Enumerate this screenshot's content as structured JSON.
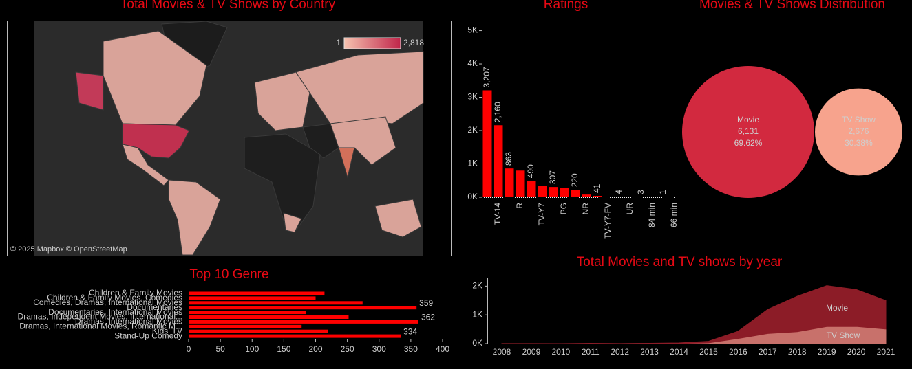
{
  "chart_data": [
    {
      "type": "map",
      "title": "Total Movies & TV Shows by Country",
      "colorbar": {
        "ticks": [
          1,
          {
            "value": 2818,
            "label": "2,818"
          }
        ],
        "colors": [
          "#f6c3b0",
          "#c0254a"
        ]
      },
      "attribution": "© 2025 Mapbox © OpenStreetMap"
    },
    {
      "type": "bar",
      "title": "Ratings",
      "categories": [
        null,
        "TV-14",
        null,
        "R",
        null,
        "TV-Y7",
        null,
        "PG",
        null,
        "NR",
        null,
        "TV-Y7-FV",
        null,
        "UR",
        null,
        "84 min",
        null,
        "66 min"
      ],
      "values": [
        3207,
        2160,
        863,
        799,
        490,
        334,
        307,
        287,
        220,
        80,
        41,
        11,
        4,
        3,
        3,
        1,
        1,
        1
      ],
      "value_labels": [
        "3,207",
        "2,160",
        "863",
        null,
        "490",
        null,
        "307",
        null,
        "220",
        null,
        "41",
        null,
        "4",
        null,
        "3",
        null,
        "1",
        null
      ],
      "color": "#ff0000",
      "ylim": [
        0,
        5300
      ],
      "yticks": [
        {
          "value": 0,
          "label": "0K"
        },
        {
          "value": 1000,
          "label": "1K"
        },
        {
          "value": 2000,
          "label": "2K"
        },
        {
          "value": 3000,
          "label": "3K"
        },
        {
          "value": 4000,
          "label": "4K"
        },
        {
          "value": 5000,
          "label": "5K"
        }
      ]
    },
    {
      "type": "bubble",
      "title": "Movies & TV Shows Distribution",
      "categories": [
        "Movie",
        "TV Show"
      ],
      "values": [
        6131,
        2676
      ],
      "value_labels": [
        "6,131",
        "2,676"
      ],
      "shares": [
        69.62,
        30.38
      ],
      "share_labels": [
        "69.62%",
        "30.38%"
      ],
      "colors": [
        "#d2293f",
        "#f7a38d"
      ]
    },
    {
      "type": "hbar",
      "title": "Top 10 Genre",
      "categories": [
        "Children & Family Movies",
        "Children & Family Movies, Comedies",
        "Comedies, Dramas, International Movies",
        "Documentaries",
        "Documentaries, International Movies",
        "Dramas, Independent Movies, International...",
        "Dramas, International Movies",
        "Dramas, International Movies, Romantic M...",
        "Kids' TV",
        "Stand-Up Comedy"
      ],
      "values": [
        214,
        200,
        274,
        359,
        185,
        252,
        362,
        178,
        219,
        334
      ],
      "value_labels": [
        null,
        null,
        null,
        "359",
        null,
        null,
        "362",
        null,
        null,
        "334"
      ],
      "color": "#ff0000",
      "xlim": [
        0,
        413
      ],
      "xticks": [
        0,
        50,
        100,
        150,
        200,
        250,
        300,
        350,
        400
      ]
    },
    {
      "type": "area",
      "title": "Total Movies and TV shows by year",
      "x": [
        2008,
        2009,
        2010,
        2011,
        2012,
        2013,
        2014,
        2015,
        2016,
        2017,
        2018,
        2019,
        2020,
        2021
      ],
      "series": [
        {
          "name": "TV Show",
          "color": "#c8716b",
          "values": [
            1,
            0,
            0,
            0,
            0,
            5,
            5,
            26,
            176,
            349,
            412,
            592,
            595,
            505
          ]
        },
        {
          "name": "Movie",
          "color": "#8c1c27",
          "values": [
            1,
            2,
            1,
            13,
            3,
            6,
            19,
            56,
            253,
            839,
            1237,
            1424,
            1284,
            993
          ]
        }
      ],
      "stacked": true,
      "xlim": [
        2007.5,
        2021.5
      ],
      "ylim": [
        0,
        2200
      ],
      "yticks": [
        {
          "value": 0,
          "label": "0K"
        },
        {
          "value": 1000,
          "label": "1K"
        },
        {
          "value": 2000,
          "label": "2K"
        }
      ]
    }
  ]
}
